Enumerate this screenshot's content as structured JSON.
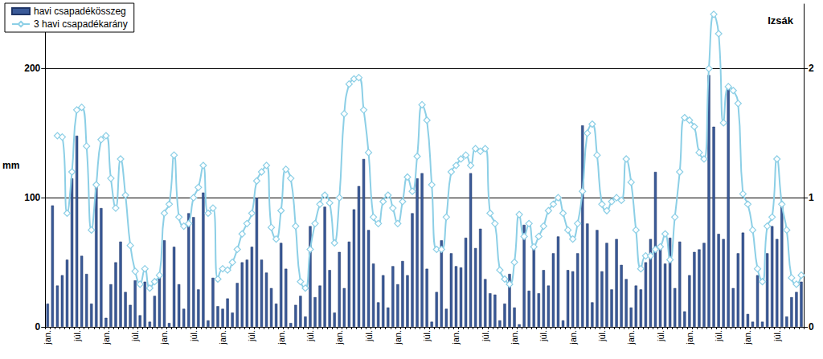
{
  "chart_data": {
    "type": "bar",
    "title": "Izsák",
    "y_label": "mm",
    "categories": [
      "jan.",
      null,
      null,
      null,
      null,
      null,
      "júl.",
      null,
      null,
      null,
      null,
      null,
      "jan.",
      null,
      null,
      null,
      null,
      null,
      "júl.",
      null,
      null,
      null,
      null,
      null,
      "jan.",
      null,
      null,
      null,
      null,
      null,
      "júl.",
      null,
      null,
      null,
      null,
      null,
      "jan.",
      null,
      null,
      null,
      null,
      null,
      "júl.",
      null,
      null,
      null,
      null,
      null,
      "jan.",
      null,
      null,
      null,
      null,
      null,
      "júl.",
      null,
      null,
      null,
      null,
      null,
      "jan.",
      null,
      null,
      null,
      null,
      null,
      "júl.",
      null,
      null,
      null,
      null,
      null,
      "jan.",
      null,
      null,
      null,
      null,
      null,
      "júl.",
      null,
      null,
      null,
      null,
      null,
      "jan.",
      null,
      null,
      null,
      null,
      null,
      "júl.",
      null,
      null,
      null,
      null,
      null,
      "jan.",
      null,
      null,
      null,
      null,
      null,
      "júl.",
      null,
      null,
      null,
      null,
      null,
      "jan.",
      null,
      null,
      null,
      null,
      null,
      "júl.",
      null,
      null,
      null,
      null,
      null,
      "jan.",
      null,
      null,
      null,
      null,
      null,
      "júl.",
      null,
      null,
      null,
      null,
      null,
      "jan.",
      null,
      null,
      null,
      null,
      null,
      "júl.",
      null,
      null,
      null,
      null,
      null,
      "jan.",
      null,
      null,
      null,
      null,
      null,
      "júl.",
      null,
      null,
      null,
      null,
      null
    ],
    "series": [
      {
        "name": "havi csapadékösszeg",
        "type": "bar",
        "color": "#3a5a98",
        "values": [
          18,
          94,
          32,
          40,
          52,
          115,
          148,
          55,
          41,
          18,
          112,
          92,
          7,
          33,
          50,
          66,
          27,
          17,
          36,
          9,
          35,
          4,
          24,
          41,
          67,
          3,
          62,
          33,
          14,
          88,
          85,
          29,
          104,
          5,
          38,
          16,
          14,
          22,
          11,
          34,
          50,
          52,
          62,
          100,
          52,
          42,
          30,
          18,
          65,
          45,
          3,
          17,
          24,
          8,
          78,
          23,
          32,
          93,
          44,
          11,
          58,
          30,
          66,
          91,
          109,
          130,
          75,
          49,
          19,
          40,
          15,
          47,
          33,
          51,
          40,
          88,
          115,
          119,
          45,
          4,
          27,
          67,
          14,
          57,
          47,
          46,
          69,
          119,
          61,
          76,
          37,
          26,
          25,
          5,
          18,
          41,
          15,
          2,
          79,
          28,
          63,
          26,
          44,
          32,
          57,
          70,
          5,
          44,
          43,
          57,
          156,
          80,
          19,
          75,
          43,
          65,
          29,
          68,
          48,
          37,
          15,
          32,
          29,
          50,
          68,
          120,
          63,
          49,
          69,
          30,
          66,
          12,
          40,
          58,
          60,
          65,
          195,
          155,
          72,
          68,
          185,
          30,
          57,
          73,
          10,
          4,
          40,
          4,
          57,
          78,
          68,
          97,
          8,
          23,
          27,
          35
        ]
      },
      {
        "name": "3 havi csapadékarány",
        "type": "line",
        "axis": "y2",
        "color": "#8ccfe6",
        "marker": "diamond",
        "values": [
          null,
          null,
          1.48,
          1.47,
          0.88,
          1.2,
          1.68,
          1.7,
          1.4,
          0.75,
          1.1,
          1.45,
          1.48,
          1.15,
          0.92,
          1.3,
          1.02,
          0.63,
          0.43,
          0.33,
          0.45,
          0.3,
          0.35,
          0.4,
          0.88,
          0.95,
          1.33,
          0.85,
          0.78,
          0.8,
          1.0,
          1.08,
          1.25,
          0.88,
          0.92,
          0.37,
          0.45,
          0.44,
          0.5,
          0.6,
          0.72,
          0.8,
          0.88,
          1.13,
          1.2,
          1.25,
          0.77,
          0.68,
          0.9,
          1.22,
          1.15,
          0.78,
          0.35,
          0.3,
          0.6,
          0.8,
          0.95,
          1.02,
          0.96,
          0.65,
          1.0,
          1.65,
          1.88,
          1.92,
          1.93,
          1.68,
          1.35,
          0.85,
          0.8,
          0.97,
          1.02,
          0.92,
          0.8,
          0.97,
          1.16,
          1.05,
          1.32,
          1.72,
          1.6,
          1.1,
          0.6,
          0.6,
          0.85,
          1.2,
          1.25,
          1.3,
          1.33,
          1.25,
          1.38,
          1.36,
          1.38,
          0.88,
          0.8,
          0.44,
          0.37,
          0.33,
          0.5,
          0.87,
          0.7,
          0.8,
          0.62,
          0.7,
          0.78,
          0.9,
          0.95,
          1.0,
          0.88,
          0.75,
          0.68,
          0.8,
          1.05,
          1.5,
          1.57,
          1.33,
          0.95,
          0.9,
          0.97,
          1.0,
          0.98,
          1.3,
          1.12,
          0.75,
          0.45,
          0.55,
          0.55,
          0.6,
          0.62,
          0.72,
          0.52,
          0.85,
          1.2,
          1.62,
          1.6,
          1.55,
          1.35,
          1.3,
          2.0,
          2.42,
          2.27,
          1.58,
          1.86,
          1.83,
          1.73,
          1.03,
          0.95,
          0.75,
          0.45,
          0.35,
          0.78,
          0.85,
          1.3,
          0.95,
          0.75,
          0.38,
          0.33,
          0.4
        ]
      }
    ],
    "ylim": [
      0,
      250
    ],
    "yticks": [
      0,
      100,
      200
    ],
    "y2lim": [
      0,
      2.5
    ],
    "y2ticks": [
      0,
      1,
      2
    ],
    "grid": true,
    "legend": "upper left"
  }
}
